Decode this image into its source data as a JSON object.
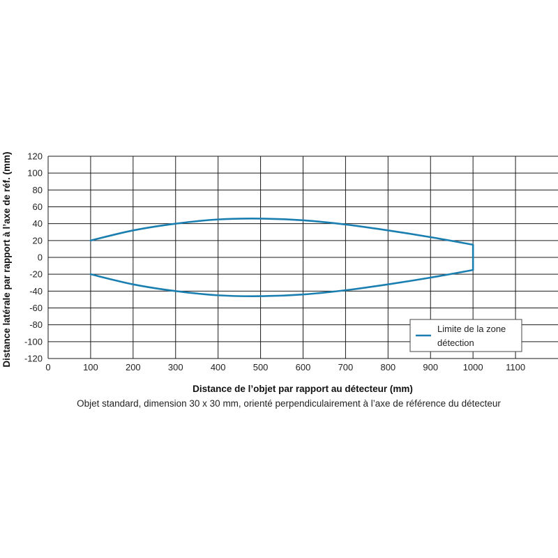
{
  "chart_data": {
    "type": "line",
    "xlabel": "Distance de l’objet par rapport au détecteur (mm)",
    "ylabel": "Distance latérale par rapport à l’axe de réf. (mm)",
    "caption": "Objet standard, dimension 30 x 30 mm, orienté perpendiculairement à l’axe de référence du détecteur",
    "xlim": [
      0,
      1200
    ],
    "ylim": [
      -120,
      120
    ],
    "x_ticks": [
      0,
      100,
      200,
      300,
      400,
      500,
      600,
      700,
      800,
      900,
      1000,
      1100
    ],
    "y_ticks": [
      120,
      100,
      80,
      60,
      40,
      20,
      0,
      -20,
      -40,
      -60,
      -80,
      -100,
      -120
    ],
    "grid": true,
    "legend_position": "bottom-right",
    "series": [
      {
        "name": "Limite de la zone détection",
        "legend_lines": [
          "Limite de la zone",
          "détection"
        ],
        "color": "#1a7fb0",
        "x": [
          100,
          200,
          300,
          400,
          500,
          600,
          700,
          800,
          900,
          1000,
          1000,
          900,
          800,
          700,
          600,
          500,
          400,
          300,
          200,
          100,
          100
        ],
        "y": [
          20,
          32,
          40,
          45,
          46,
          44,
          39,
          32,
          24,
          15,
          -15,
          -24,
          -32,
          -39,
          -44,
          -46,
          -45,
          -40,
          -32,
          -20,
          20
        ]
      }
    ]
  }
}
